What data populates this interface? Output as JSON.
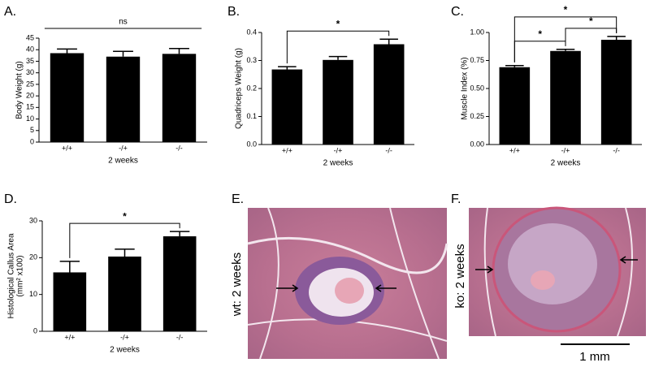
{
  "chart_data": [
    {
      "type": "bar",
      "panel": "A.",
      "ylabel": "Body Weight (g)",
      "xlabel": "2 weeks",
      "categories": [
        "+/+",
        "-/+",
        "-/-"
      ],
      "values": [
        38.5,
        37,
        38.2
      ],
      "errors": [
        1.8,
        2.3,
        2.3
      ],
      "color": "#000000",
      "ylim": [
        0,
        45
      ],
      "yticks": [
        0,
        5,
        10,
        15,
        20,
        25,
        30,
        35,
        40,
        45
      ],
      "annotations": [
        {
          "label": "ns",
          "from": 0,
          "to": 2,
          "bracket": false
        }
      ]
    },
    {
      "type": "bar",
      "panel": "B.",
      "ylabel": "Quadriceps Weight (g)",
      "xlabel": "2 weeks",
      "categories": [
        "+/+",
        "-/+",
        "-/-"
      ],
      "values": [
        0.268,
        0.302,
        0.358
      ],
      "errors": [
        0.01,
        0.012,
        0.018
      ],
      "color": "#000000",
      "ylim": [
        0,
        0.4
      ],
      "yticks": [
        {
          "value": 0,
          "label": "0.0"
        },
        0.1,
        0.2,
        0.3,
        0.4
      ],
      "annotations": [
        {
          "label": "*",
          "from": 0,
          "to": 2,
          "bracket": true
        }
      ]
    },
    {
      "type": "bar",
      "panel": "C.",
      "ylabel": "Muscle Index (%)",
      "xlabel": "2 weeks",
      "categories": [
        "+/+",
        "-/+",
        "-/-"
      ],
      "values": [
        0.69,
        0.835,
        0.935
      ],
      "errors": [
        0.015,
        0.015,
        0.03
      ],
      "color": "#000000",
      "ylim": [
        0,
        1
      ],
      "yticks": [
        {
          "value": 0,
          "label": "0.00"
        },
        {
          "value": 0.25,
          "label": "0.25"
        },
        {
          "value": 0.5,
          "label": "0.50"
        },
        {
          "value": 0.75,
          "label": "0.75"
        },
        {
          "value": 1,
          "label": "1.00"
        }
      ],
      "annotations": [
        {
          "label": "*",
          "from": 0,
          "to": 1,
          "bracket": true
        },
        {
          "label": "*",
          "from": 1,
          "to": 2,
          "bracket": true
        },
        {
          "label": "*",
          "from": 0,
          "to": 2,
          "bracket": true
        }
      ]
    },
    {
      "type": "bar",
      "panel": "D.",
      "ylabel": "Histological Callus Area",
      "ylabel_unit": "(mm² x100)",
      "xlabel": "2 weeks",
      "categories": [
        "+/+",
        "-/+",
        "-/-"
      ],
      "values": [
        16,
        20.3,
        25.8
      ],
      "errors": [
        3,
        2,
        1.3
      ],
      "color": "#000000",
      "ylim": [
        0,
        30
      ],
      "yticks": [
        0,
        10,
        20,
        30
      ],
      "annotations": [
        {
          "label": "*",
          "from": 0,
          "to": 2,
          "bracket": true
        }
      ]
    }
  ],
  "images": [
    {
      "panel": "E.",
      "label": "wt: 2 weeks"
    },
    {
      "panel": "F.",
      "label": "ko: 2 weeks",
      "scale_bar": "1 mm"
    }
  ]
}
